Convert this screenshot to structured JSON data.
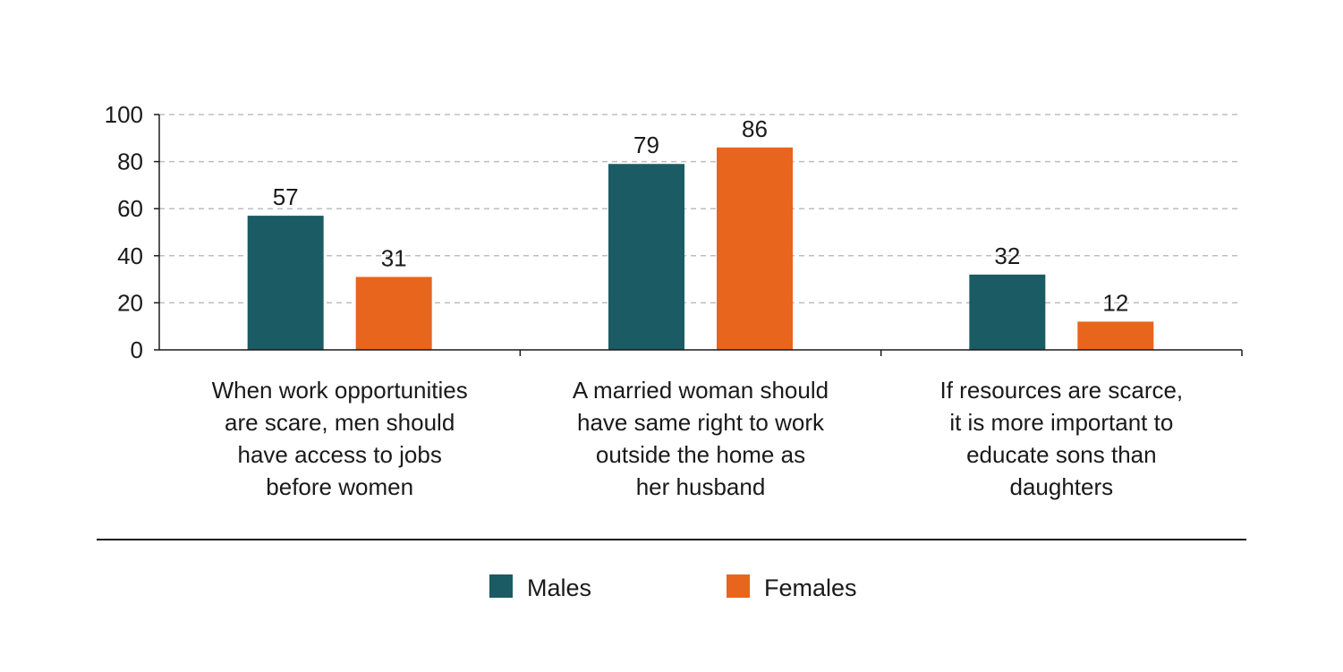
{
  "chart_data": {
    "type": "bar",
    "categories": [
      [
        "When work opportunities",
        "are scare, men should",
        "have access to jobs",
        "before women"
      ],
      [
        "A married woman should",
        "have same right to work",
        "outside the home as",
        "her husband"
      ],
      [
        "If resources are scarce,",
        "it is more important to",
        "educate sons than",
        "daughters"
      ]
    ],
    "series": [
      {
        "name": "Males",
        "values": [
          57,
          79,
          32
        ],
        "color": "#1b5b64"
      },
      {
        "name": "Females",
        "values": [
          31,
          86,
          12
        ],
        "color": "#e8651e"
      }
    ],
    "ylim": [
      0,
      100
    ],
    "yticks": [
      0,
      20,
      40,
      60,
      80,
      100
    ],
    "grid": true,
    "grid_style": "dashed",
    "legend_position": "bottom-center"
  }
}
